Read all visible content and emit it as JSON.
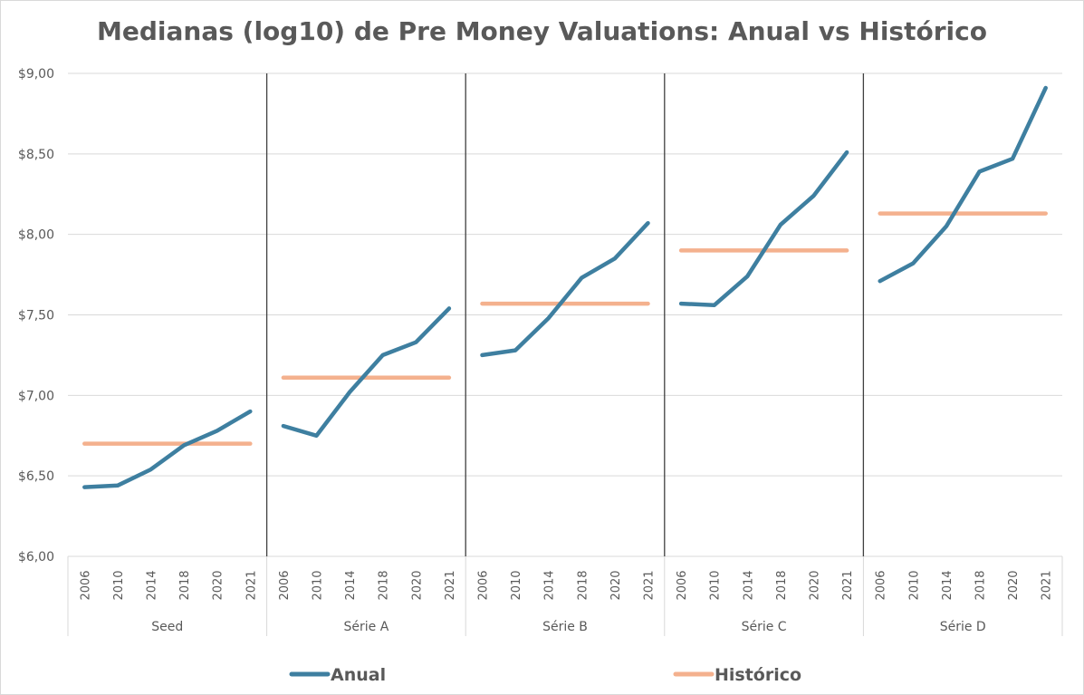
{
  "chart_data": {
    "type": "line",
    "title": "Medianas (log10) de Pre Money Valuations: Anual vs Histórico",
    "xlabel": "",
    "ylabel": "",
    "ylim": [
      6.0,
      9.0
    ],
    "y_ticks": [
      "$6,00",
      "$6,50",
      "$7,00",
      "$7,50",
      "$8,00",
      "$8,50",
      "$9,00"
    ],
    "y_tick_values": [
      6.0,
      6.5,
      7.0,
      7.5,
      8.0,
      8.5,
      9.0
    ],
    "grid": "horizontal",
    "legend_position": "bottom",
    "years": [
      "2006",
      "2010",
      "2014",
      "2018",
      "2020",
      "2021"
    ],
    "groups": [
      {
        "label": "Seed",
        "anual": [
          6.43,
          6.44,
          6.54,
          6.69,
          6.78,
          6.9
        ],
        "historico": 6.7
      },
      {
        "label": "Série A",
        "anual": [
          6.81,
          6.75,
          7.02,
          7.25,
          7.33,
          7.54
        ],
        "historico": 7.11
      },
      {
        "label": "Série B",
        "anual": [
          7.25,
          7.28,
          7.48,
          7.73,
          7.85,
          8.07
        ],
        "historico": 7.57
      },
      {
        "label": "Série C",
        "anual": [
          7.57,
          7.56,
          7.74,
          8.06,
          8.24,
          8.51
        ],
        "historico": 7.9
      },
      {
        "label": "Série D",
        "anual": [
          7.71,
          7.82,
          8.05,
          8.39,
          8.47,
          8.91
        ],
        "historico": 8.13
      }
    ],
    "series": [
      {
        "name": "Anual",
        "color": "#3e7fa0"
      },
      {
        "name": "Histórico",
        "color": "#f4b18e"
      }
    ]
  }
}
